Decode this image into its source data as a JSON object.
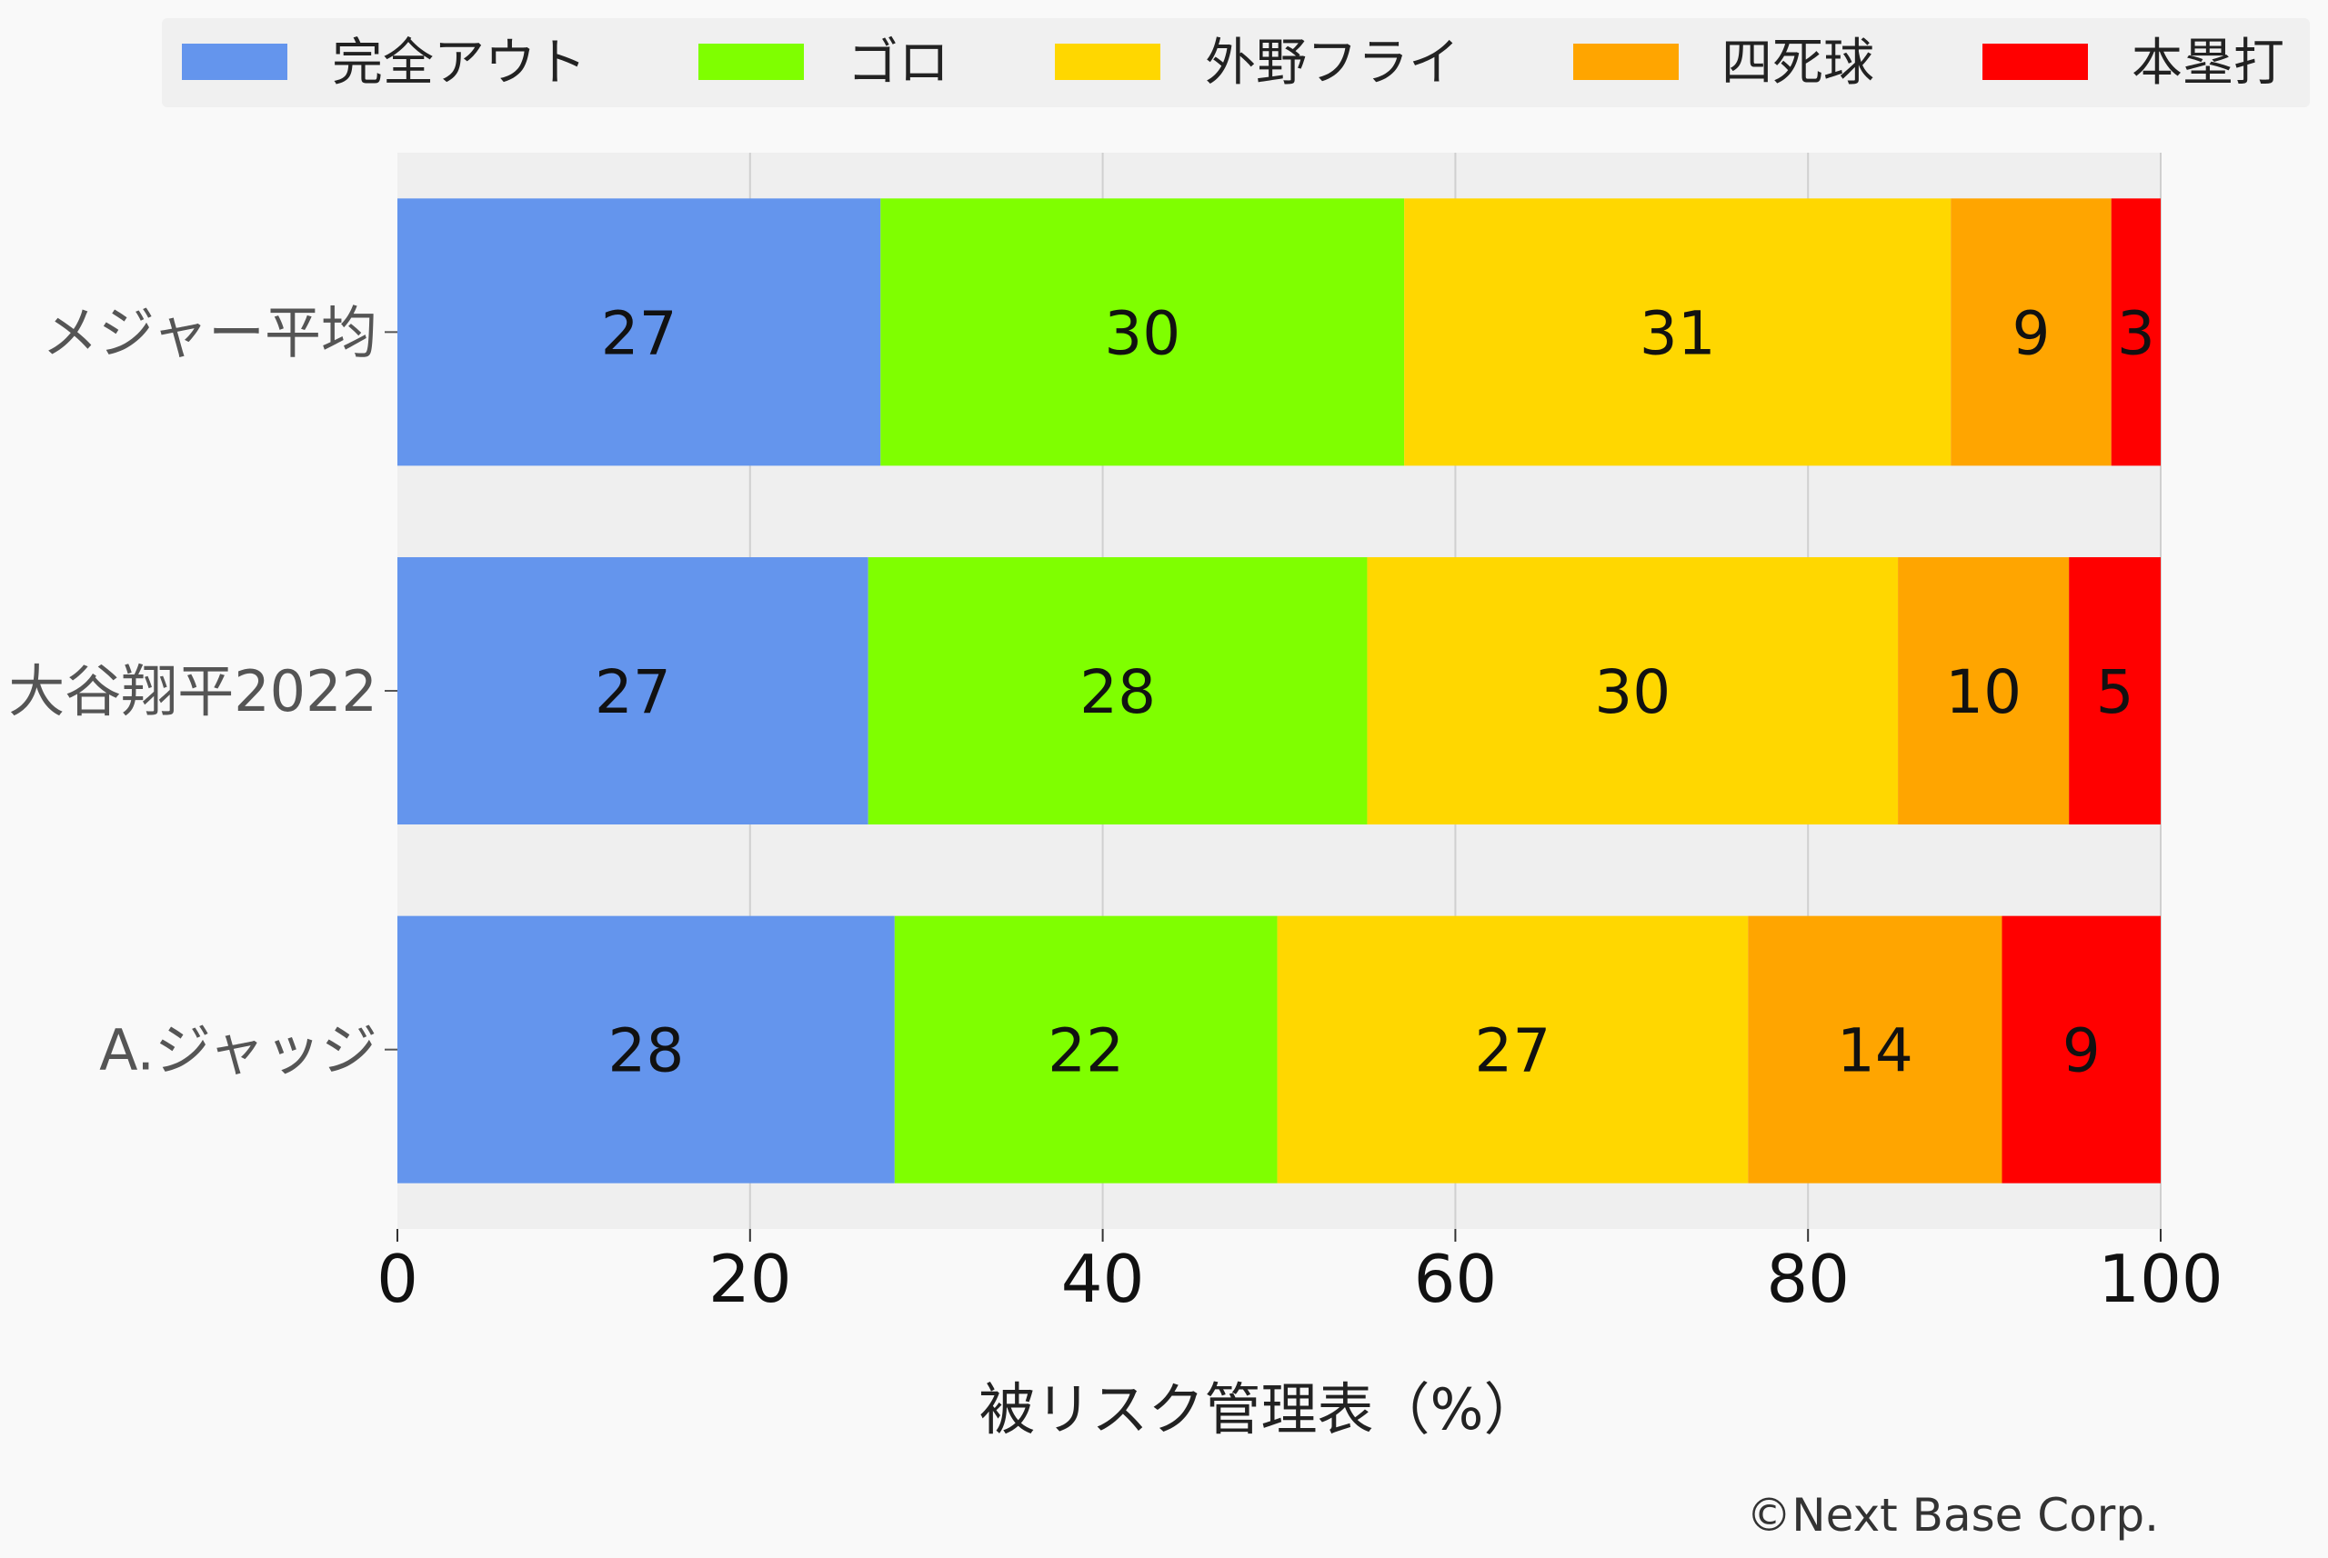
{
  "chart_data": {
    "type": "bar",
    "orientation": "horizontal",
    "stacked": true,
    "categories": [
      "メジャー平均",
      "大谷翔平2022",
      "A.ジャッジ"
    ],
    "series": [
      {
        "name": "完全アウト",
        "color": "#6495ED",
        "values": [
          27.4,
          26.7,
          28.2
        ],
        "labels": [
          "27",
          "27",
          "28"
        ]
      },
      {
        "name": "ゴロ",
        "color": "#7FFF00",
        "values": [
          29.7,
          28.3,
          21.7
        ],
        "labels": [
          "30",
          "28",
          "22"
        ]
      },
      {
        "name": "外野フライ",
        "color": "#FFD700",
        "values": [
          31.0,
          30.1,
          26.7
        ],
        "labels": [
          "31",
          "30",
          "27"
        ]
      },
      {
        "name": "四死球",
        "color": "#FFA500",
        "values": [
          9.1,
          9.7,
          14.4
        ],
        "labels": [
          "9",
          "10",
          "14"
        ]
      },
      {
        "name": "本塁打",
        "color": "#FF0000",
        "values": [
          2.8,
          5.2,
          9.0
        ],
        "labels": [
          "3",
          "5",
          "9"
        ]
      }
    ],
    "xlabel": "被リスク管理表（%）",
    "xlim": [
      0,
      100
    ],
    "xticks": [
      "0",
      "20",
      "40",
      "60",
      "80",
      "100"
    ],
    "grid": true,
    "legend_position": "top"
  },
  "credit": "©Next Base Corp.",
  "colors": {
    "background": "#f9f9f9",
    "plot_background": "#efefef",
    "grid": "#d0d0d0",
    "legend_background": "#f0f0f0",
    "label_text": "#555555"
  }
}
